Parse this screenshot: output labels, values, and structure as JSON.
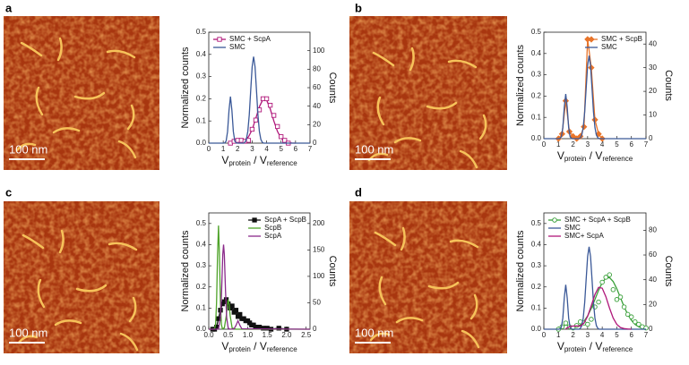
{
  "panels": [
    {
      "label": "a",
      "scale_bar": "100 nm"
    },
    {
      "label": "b",
      "scale_bar": "100 nm"
    },
    {
      "label": "c",
      "scale_bar": "100 nm"
    },
    {
      "label": "d",
      "scale_bar": "100 nm"
    }
  ],
  "chart_data": [
    {
      "type": "line",
      "ylabel": "Normalized counts",
      "y2label": "Counts",
      "xlabel": [
        "V",
        "protein",
        " / V",
        "reference"
      ],
      "xlim": [
        0,
        7
      ],
      "xticks": [
        0,
        1,
        2,
        3,
        4,
        5,
        6,
        7
      ],
      "ylim": [
        0,
        0.5
      ],
      "yticks": [
        {
          "value": 0,
          "label": "0.0"
        },
        0.1,
        0.2,
        0.3,
        0.4,
        0.5
      ],
      "y2lim": [
        0,
        120
      ],
      "y2ticks": [
        0,
        20,
        40,
        60,
        80,
        100
      ],
      "legend": "upper left",
      "series": [
        {
          "name": "SMC + ScpA",
          "color": "#b0177a",
          "axis": "y2",
          "marker": "square",
          "filled": false,
          "x": [
            1.5,
            1.75,
            2.0,
            2.25,
            2.5,
            2.75,
            3.0,
            3.25,
            3.5,
            3.75,
            4.0,
            4.25,
            4.5,
            4.75,
            5.0,
            5.25,
            5.5
          ],
          "values": [
            0,
            2,
            3,
            3,
            2,
            3,
            15,
            25,
            36,
            48,
            48,
            41,
            30,
            18,
            7,
            3,
            0
          ],
          "fit": {
            "x": [
              1.5,
              1.75,
              2.0,
              2.25,
              2.5,
              2.75,
              3.0,
              3.25,
              3.5,
              3.75,
              4.0,
              4.25,
              4.5,
              4.75,
              5.0,
              5.25,
              5.5,
              5.75,
              6.0
            ],
            "values": [
              0.6,
              2.9,
              3.5,
              3.5,
              3.5,
              6.9,
              14.6,
              26.7,
              39.4,
              47.5,
              46.6,
              37,
              24,
              12.7,
              5.4,
              1.8,
              0.6,
              0.1,
              0
            ]
          }
        },
        {
          "name": "SMC",
          "color": "#3b5998",
          "line": true,
          "x": [
            0,
            1.0,
            1.1,
            1.2,
            1.3,
            1.4,
            1.5,
            1.6,
            1.7,
            1.8,
            1.9,
            2.0,
            2.4,
            2.5,
            2.6,
            2.7,
            2.8,
            2.9,
            3.0,
            3.1,
            3.2,
            3.3,
            3.4,
            3.5,
            3.6,
            3.7,
            3.8,
            7
          ],
          "values": [
            0,
            0,
            0.001,
            0.009,
            0.052,
            0.148,
            0.21,
            0.148,
            0.052,
            0.009,
            0.001,
            0,
            0,
            0.004,
            0.017,
            0.053,
            0.127,
            0.237,
            0.344,
            0.39,
            0.344,
            0.237,
            0.127,
            0.053,
            0.017,
            0.004,
            0,
            0
          ]
        }
      ]
    },
    {
      "type": "line",
      "ylabel": "Normalized counts",
      "y2label": "Counts",
      "xlabel": [
        "V",
        "protein",
        " / V",
        "reference"
      ],
      "xlim": [
        0,
        7
      ],
      "xticks": [
        0,
        1,
        2,
        3,
        4,
        5,
        6,
        7
      ],
      "ylim": [
        0,
        0.5
      ],
      "yticks": [
        {
          "value": 0,
          "label": "0.0"
        },
        0.1,
        0.2,
        0.3,
        0.4,
        0.5
      ],
      "y2lim": [
        0,
        45
      ],
      "y2ticks": [
        0,
        10,
        20,
        30,
        40
      ],
      "legend": "upper right",
      "series": [
        {
          "name": "SMC + ScpB",
          "color": "#e8742a",
          "axis": "y2",
          "marker": "diamond",
          "filled": true,
          "line": true,
          "x": [
            1.0,
            1.25,
            1.5,
            1.75,
            2.0,
            2.25,
            2.5,
            2.75,
            3.0,
            3.25,
            3.5,
            3.75,
            4.0
          ],
          "values": [
            0,
            2,
            16,
            3,
            1,
            0,
            1,
            5,
            42,
            30,
            8,
            2,
            0
          ]
        },
        {
          "name": "SMC",
          "color": "#3b5998",
          "line": true,
          "x": [
            0,
            1.0,
            1.1,
            1.2,
            1.3,
            1.4,
            1.5,
            1.6,
            1.7,
            1.8,
            1.9,
            2.0,
            2.4,
            2.5,
            2.6,
            2.7,
            2.8,
            2.9,
            3.0,
            3.1,
            3.2,
            3.3,
            3.4,
            3.5,
            3.6,
            3.7,
            3.8,
            7
          ],
          "values": [
            0,
            0,
            0.001,
            0.009,
            0.052,
            0.148,
            0.21,
            0.148,
            0.052,
            0.009,
            0.001,
            0,
            0,
            0.004,
            0.017,
            0.053,
            0.127,
            0.237,
            0.344,
            0.39,
            0.344,
            0.237,
            0.127,
            0.053,
            0.017,
            0.004,
            0,
            0
          ]
        }
      ]
    },
    {
      "type": "line",
      "ylabel": "Normalized counts",
      "y2label": "Counts",
      "xlabel": [
        "V",
        "protein",
        " / V",
        "reference"
      ],
      "xlim": [
        0,
        2.6
      ],
      "xticks": [
        {
          "value": 0,
          "label": "0.0"
        },
        0.5,
        {
          "value": 1,
          "label": "1.0"
        },
        1.5,
        {
          "value": 2,
          "label": "2.0"
        },
        2.5
      ],
      "ylim": [
        0,
        0.55
      ],
      "yticks": [
        {
          "value": 0,
          "label": "0.0"
        },
        0.1,
        0.2,
        0.3,
        0.4,
        0.5
      ],
      "y2lim": [
        0,
        220
      ],
      "y2ticks": [
        0,
        50,
        100,
        150,
        200
      ],
      "legend": "upper right",
      "series": [
        {
          "name": "ScpA + ScpB",
          "color": "#111111",
          "axis": "y2",
          "marker": "square",
          "filled": true,
          "line": true,
          "x": [
            0.1,
            0.15,
            0.2,
            0.25,
            0.3,
            0.35,
            0.4,
            0.45,
            0.5,
            0.55,
            0.6,
            0.65,
            0.7,
            0.75,
            0.8,
            0.85,
            0.9,
            0.95,
            1.0,
            1.05,
            1.1,
            1.15,
            1.2,
            1.3,
            1.4,
            1.5,
            1.6,
            1.8,
            2.0
          ],
          "values": [
            0,
            0,
            4,
            20,
            36,
            48,
            52,
            56,
            48,
            40,
            44,
            32,
            36,
            24,
            28,
            20,
            20,
            16,
            16,
            12,
            8,
            8,
            4,
            4,
            2,
            2,
            0,
            2,
            0
          ]
        },
        {
          "name": "ScpB",
          "color": "#4fa32a",
          "line": true,
          "x": [
            0,
            0.1,
            0.15,
            0.175,
            0.2,
            0.225,
            0.25,
            0.275,
            0.3,
            0.325,
            0.35,
            0.4,
            0.45,
            0.475,
            0.5,
            0.525,
            0.55,
            0.6,
            0.7,
            2.6
          ],
          "values": [
            0,
            0,
            0.002,
            0.022,
            0.122,
            0.346,
            0.49,
            0.346,
            0.122,
            0.022,
            0.002,
            0.006,
            0.064,
            0.115,
            0.14,
            0.115,
            0.064,
            0.006,
            0,
            0
          ]
        },
        {
          "name": "ScpA",
          "color": "#8a2a8a",
          "line": true,
          "x": [
            0,
            0.2,
            0.25,
            0.3,
            0.33,
            0.36,
            0.38,
            0.4,
            0.43,
            0.46,
            0.5,
            0.55,
            0.65,
            0.7,
            0.75,
            0.8,
            0.85,
            2.6
          ],
          "values": [
            0,
            0,
            0.002,
            0.054,
            0.183,
            0.353,
            0.4,
            0.353,
            0.183,
            0.054,
            0.004,
            0,
            0.002,
            0.018,
            0.04,
            0.018,
            0.002,
            0
          ]
        }
      ]
    },
    {
      "type": "line",
      "ylabel": "Normalized counts",
      "y2label": "Counts",
      "xlabel": [
        "V",
        "protein",
        " / V",
        "reference"
      ],
      "xlim": [
        0,
        7
      ],
      "xticks": [
        0,
        1,
        2,
        3,
        4,
        5,
        6,
        7
      ],
      "ylim": [
        0,
        0.55
      ],
      "yticks": [
        {
          "value": 0,
          "label": "0.0"
        },
        0.1,
        0.2,
        0.3,
        0.4,
        0.5
      ],
      "y2lim": [
        0,
        94
      ],
      "y2ticks": [
        0,
        20,
        40,
        60,
        80
      ],
      "legend": "upper left",
      "series": [
        {
          "name": "SMC + ScpA + ScpB",
          "color": "#3aa03a",
          "axis": "y2",
          "marker": "circle",
          "filled": false,
          "x": [
            1.0,
            1.25,
            1.5,
            1.75,
            2.0,
            2.25,
            2.5,
            2.75,
            3.0,
            3.25,
            3.5,
            3.75,
            4.0,
            4.25,
            4.5,
            4.75,
            5.0,
            5.25,
            5.5,
            5.75,
            6.0,
            6.25,
            6.5,
            6.75,
            7.0
          ],
          "values": [
            0,
            2,
            5,
            2,
            1,
            3,
            6,
            5,
            4,
            8,
            18,
            22,
            38,
            42,
            44,
            32,
            24,
            26,
            18,
            12,
            10,
            6,
            4,
            2,
            1
          ],
          "fit": {
            "x": [
              1.0,
              1.25,
              1.5,
              1.75,
              2.0,
              2.25,
              2.5,
              2.75,
              3.0,
              3.25,
              3.5,
              3.75,
              4.0,
              4.25,
              4.5,
              4.75,
              5.0,
              5.25,
              5.5,
              5.75,
              6.0,
              6.25,
              6.5,
              6.75,
              7.0
            ],
            "values": [
              0,
              1,
              4,
              2,
              1,
              2,
              3.4,
              6.4,
              10.8,
              16.8,
              24,
              31.4,
              37.6,
              41.4,
              41.7,
              38.6,
              32.7,
              25.5,
              18.2,
              11.9,
              7.2,
              3.9,
              2,
              0.9,
              0.4
            ]
          }
        },
        {
          "name": "SMC",
          "color": "#3b5998",
          "line": true,
          "x": [
            0,
            1.0,
            1.1,
            1.2,
            1.3,
            1.4,
            1.5,
            1.6,
            1.7,
            1.8,
            1.9,
            2.0,
            2.4,
            2.5,
            2.6,
            2.7,
            2.8,
            2.9,
            3.0,
            3.1,
            3.2,
            3.3,
            3.4,
            3.5,
            3.6,
            3.7,
            3.8,
            7
          ],
          "values": [
            0,
            0,
            0.001,
            0.009,
            0.052,
            0.148,
            0.21,
            0.148,
            0.052,
            0.009,
            0.001,
            0,
            0,
            0.004,
            0.017,
            0.053,
            0.127,
            0.237,
            0.344,
            0.39,
            0.344,
            0.237,
            0.127,
            0.053,
            0.017,
            0.004,
            0,
            0
          ]
        },
        {
          "name": "SMC+ ScpA",
          "color": "#b0177a",
          "line": true,
          "x": [
            1.5,
            1.75,
            2.0,
            2.25,
            2.5,
            2.75,
            3.0,
            3.25,
            3.5,
            3.75,
            4.0,
            4.25,
            4.5,
            4.75,
            5.0,
            5.25,
            5.5,
            5.75,
            6.0
          ],
          "values": [
            0.002,
            0.012,
            0.015,
            0.015,
            0.015,
            0.029,
            0.061,
            0.111,
            0.164,
            0.198,
            0.194,
            0.154,
            0.1,
            0.053,
            0.023,
            0.008,
            0.003,
            0.001,
            0
          ]
        }
      ]
    }
  ]
}
